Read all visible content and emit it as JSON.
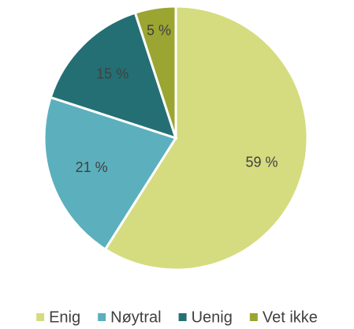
{
  "chart_data": {
    "type": "pie",
    "categories": [
      "Enig",
      "Nøytral",
      "Uenig",
      "Vet ikke"
    ],
    "values": [
      59,
      21,
      15,
      5
    ],
    "value_labels": [
      "59 %",
      "21 %",
      "15 %",
      "5 %"
    ],
    "colors": [
      "#d5dc7f",
      "#5cb0bd",
      "#246f74",
      "#9ba532"
    ],
    "legend": "bottom"
  }
}
